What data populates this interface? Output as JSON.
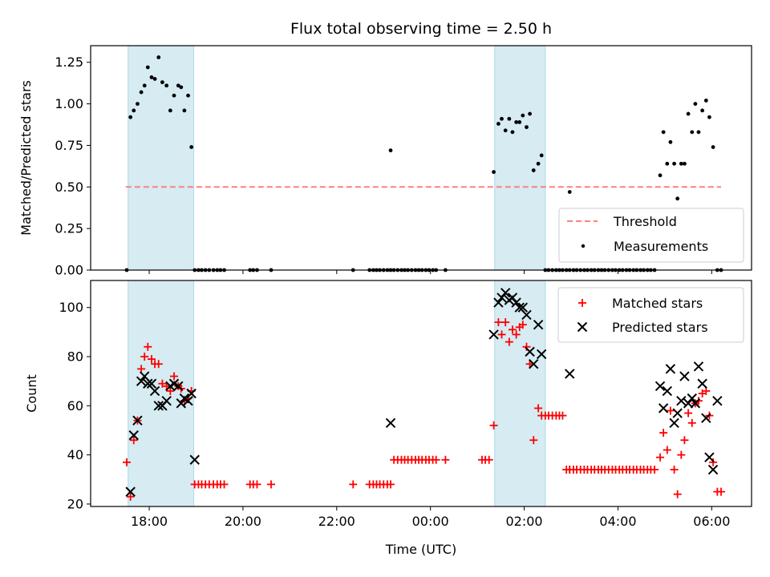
{
  "chart_data": [
    {
      "type": "scatter",
      "title": "Flux total observing time = 2.50 h",
      "xlabel": "",
      "ylabel": "Matched/Predicted stars",
      "x_unit": "hours (UTC, continuous; values above 24 wrap to next day)",
      "xlim": [
        16.75,
        30.85
      ],
      "ylim": [
        0.0,
        1.35
      ],
      "yticks": [
        0.0,
        0.25,
        0.5,
        0.75,
        1.0,
        1.25
      ],
      "ytick_labels": [
        "0.00",
        "0.25",
        "0.50",
        "0.75",
        "1.00",
        "1.25"
      ],
      "shaded_intervals": [
        [
          17.55,
          18.95
        ],
        [
          25.37,
          26.45
        ]
      ],
      "threshold": {
        "name": "Threshold",
        "value": 0.5,
        "x_range": [
          17.5,
          30.2
        ],
        "color": "#ff7f7f"
      },
      "legend_position": "lower-right",
      "series": [
        {
          "name": "Measurements",
          "color": "#000000",
          "marker": "dot",
          "x": [
            17.52,
            17.6,
            17.67,
            17.75,
            17.83,
            17.9,
            17.97,
            18.05,
            18.12,
            18.2,
            18.28,
            18.37,
            18.45,
            18.53,
            18.62,
            18.68,
            18.75,
            18.83,
            18.9,
            18.97,
            19.05,
            19.12,
            19.2,
            19.28,
            19.37,
            19.45,
            19.52,
            19.6,
            20.15,
            20.22,
            20.3,
            20.6,
            22.35,
            22.7,
            22.78,
            22.85,
            22.92,
            23.0,
            23.08,
            23.15,
            23.22,
            23.3,
            23.38,
            23.45,
            23.52,
            23.6,
            23.68,
            23.75,
            23.82,
            23.9,
            23.97,
            24.05,
            24.12,
            24.32,
            23.15,
            25.35,
            25.45,
            25.52,
            25.6,
            25.68,
            25.75,
            25.83,
            25.9,
            25.97,
            26.05,
            26.12,
            26.2,
            26.3,
            26.37,
            26.45,
            26.52,
            26.6,
            26.68,
            26.75,
            26.82,
            26.9,
            26.97,
            26.97,
            27.05,
            27.12,
            27.2,
            27.28,
            27.35,
            27.43,
            27.5,
            27.58,
            27.65,
            27.72,
            27.8,
            27.88,
            27.95,
            28.03,
            28.1,
            28.18,
            28.25,
            28.33,
            28.4,
            28.48,
            28.55,
            28.63,
            28.7,
            28.78,
            28.9,
            28.97,
            29.05,
            29.12,
            29.2,
            29.27,
            29.35,
            29.42,
            29.5,
            29.58,
            29.65,
            29.72,
            29.8,
            29.88,
            29.95,
            30.03,
            30.12,
            30.2
          ],
          "y": [
            0.0,
            0.92,
            0.96,
            1.0,
            1.07,
            1.11,
            1.22,
            1.16,
            1.15,
            1.28,
            1.13,
            1.11,
            0.96,
            1.05,
            1.11,
            1.1,
            0.96,
            1.05,
            0.74,
            0.0,
            0.0,
            0.0,
            0.0,
            0.0,
            0.0,
            0.0,
            0.0,
            0.0,
            0.0,
            0.0,
            0.0,
            0.0,
            0.0,
            0.0,
            0.0,
            0.0,
            0.0,
            0.0,
            0.0,
            0.0,
            0.0,
            0.0,
            0.0,
            0.0,
            0.0,
            0.0,
            0.0,
            0.0,
            0.0,
            0.0,
            0.0,
            0.0,
            0.0,
            0.0,
            0.72,
            0.59,
            0.88,
            0.91,
            0.84,
            0.91,
            0.83,
            0.89,
            0.89,
            0.93,
            0.86,
            0.94,
            0.6,
            0.64,
            0.69,
            0.0,
            0.0,
            0.0,
            0.0,
            0.0,
            0.0,
            0.0,
            0.47,
            0.0,
            0.0,
            0.0,
            0.0,
            0.0,
            0.0,
            0.0,
            0.0,
            0.0,
            0.0,
            0.0,
            0.0,
            0.0,
            0.0,
            0.0,
            0.0,
            0.0,
            0.0,
            0.0,
            0.0,
            0.0,
            0.0,
            0.0,
            0.0,
            0.0,
            0.57,
            0.83,
            0.64,
            0.77,
            0.64,
            0.43,
            0.64,
            0.64,
            0.94,
            0.83,
            1.0,
            0.83,
            0.96,
            1.02,
            0.92,
            0.74,
            0.0,
            0.0
          ]
        }
      ]
    },
    {
      "type": "scatter",
      "title": "",
      "xlabel": "Time (UTC)",
      "ylabel": "Count",
      "x_unit": "hours (UTC, continuous; values above 24 wrap to next day)",
      "xlim": [
        16.75,
        30.85
      ],
      "ylim": [
        19,
        111
      ],
      "yticks": [
        20,
        40,
        60,
        80,
        100
      ],
      "xticks": [
        18,
        20,
        22,
        24,
        26,
        28,
        30
      ],
      "xtick_labels": [
        "18:00",
        "20:00",
        "22:00",
        "00:00",
        "02:00",
        "04:00",
        "06:00"
      ],
      "shaded_intervals": [
        [
          17.55,
          18.95
        ],
        [
          25.37,
          26.45
        ]
      ],
      "legend_position": "upper-right",
      "series": [
        {
          "name": "Matched stars",
          "color": "#ff0000",
          "marker": "plus",
          "x": [
            17.52,
            17.6,
            17.67,
            17.75,
            17.83,
            17.9,
            17.97,
            18.05,
            18.12,
            18.2,
            18.28,
            18.37,
            18.45,
            18.53,
            18.62,
            18.68,
            18.75,
            18.83,
            18.9,
            18.97,
            19.05,
            19.12,
            19.2,
            19.28,
            19.37,
            19.45,
            19.52,
            19.6,
            20.15,
            20.22,
            20.3,
            20.6,
            22.35,
            22.7,
            22.78,
            22.85,
            22.92,
            23.0,
            23.08,
            23.15,
            23.22,
            23.3,
            23.38,
            23.45,
            23.52,
            23.6,
            23.68,
            23.75,
            23.82,
            23.9,
            23.97,
            24.05,
            24.12,
            24.32,
            25.1,
            25.17,
            25.25,
            25.35,
            25.45,
            25.52,
            25.6,
            25.68,
            25.75,
            25.83,
            25.9,
            25.97,
            26.05,
            26.12,
            26.2,
            26.3,
            26.37,
            26.45,
            26.52,
            26.6,
            26.68,
            26.75,
            26.82,
            26.9,
            26.97,
            26.97,
            27.05,
            27.12,
            27.2,
            27.28,
            27.35,
            27.43,
            27.5,
            27.58,
            27.65,
            27.72,
            27.8,
            27.88,
            27.95,
            28.03,
            28.1,
            28.18,
            28.25,
            28.33,
            28.4,
            28.48,
            28.55,
            28.63,
            28.7,
            28.78,
            28.9,
            28.97,
            29.05,
            29.12,
            29.2,
            29.27,
            29.35,
            29.42,
            29.5,
            29.58,
            29.65,
            29.72,
            29.8,
            29.88,
            29.95,
            30.03,
            30.12,
            30.2
          ],
          "y": [
            37,
            23,
            46,
            54,
            75,
            80,
            84,
            79,
            77,
            77,
            69,
            68,
            66,
            72,
            68,
            67,
            62,
            63,
            66,
            28,
            28,
            28,
            28,
            28,
            28,
            28,
            28,
            28,
            28,
            28,
            28,
            28,
            28,
            28,
            28,
            28,
            28,
            28,
            28,
            28,
            38,
            38,
            38,
            38,
            38,
            38,
            38,
            38,
            38,
            38,
            38,
            38,
            38,
            38,
            38,
            38,
            38,
            52,
            94,
            89,
            94,
            86,
            91,
            89,
            92,
            93,
            84,
            77,
            46,
            59,
            56,
            56,
            56,
            56,
            56,
            56,
            56,
            34,
            34,
            34,
            34,
            34,
            34,
            34,
            34,
            34,
            34,
            34,
            34,
            34,
            34,
            34,
            34,
            34,
            34,
            34,
            34,
            34,
            34,
            34,
            34,
            34,
            34,
            34,
            39,
            49,
            42,
            58,
            34,
            24,
            40,
            46,
            57,
            53,
            61,
            62,
            65,
            66,
            56,
            37,
            25,
            25
          ]
        },
        {
          "name": "Predicted stars",
          "color": "#000000",
          "marker": "x",
          "x": [
            17.6,
            17.67,
            17.75,
            17.83,
            17.9,
            17.97,
            18.05,
            18.12,
            18.2,
            18.28,
            18.37,
            18.45,
            18.53,
            18.62,
            18.68,
            18.75,
            18.83,
            18.9,
            18.97,
            23.15,
            25.35,
            25.45,
            25.52,
            25.6,
            25.68,
            25.75,
            25.83,
            25.9,
            25.97,
            26.05,
            26.12,
            26.2,
            26.3,
            26.37,
            26.97,
            28.9,
            28.97,
            29.05,
            29.12,
            29.2,
            29.27,
            29.35,
            29.42,
            29.5,
            29.58,
            29.65,
            29.72,
            29.8,
            29.88,
            29.95,
            30.03,
            30.12
          ],
          "y": [
            25,
            48,
            54,
            70,
            72,
            69,
            69,
            66,
            60,
            60,
            62,
            68,
            69,
            68,
            61,
            63,
            62,
            65,
            38,
            53,
            89,
            102,
            104,
            106,
            103,
            104,
            102,
            100,
            100,
            97,
            82,
            77,
            93,
            81,
            73,
            68,
            59,
            66,
            75,
            53,
            57,
            62,
            72,
            61,
            63,
            61,
            76,
            69,
            55,
            39,
            34,
            62
          ]
        }
      ]
    }
  ]
}
